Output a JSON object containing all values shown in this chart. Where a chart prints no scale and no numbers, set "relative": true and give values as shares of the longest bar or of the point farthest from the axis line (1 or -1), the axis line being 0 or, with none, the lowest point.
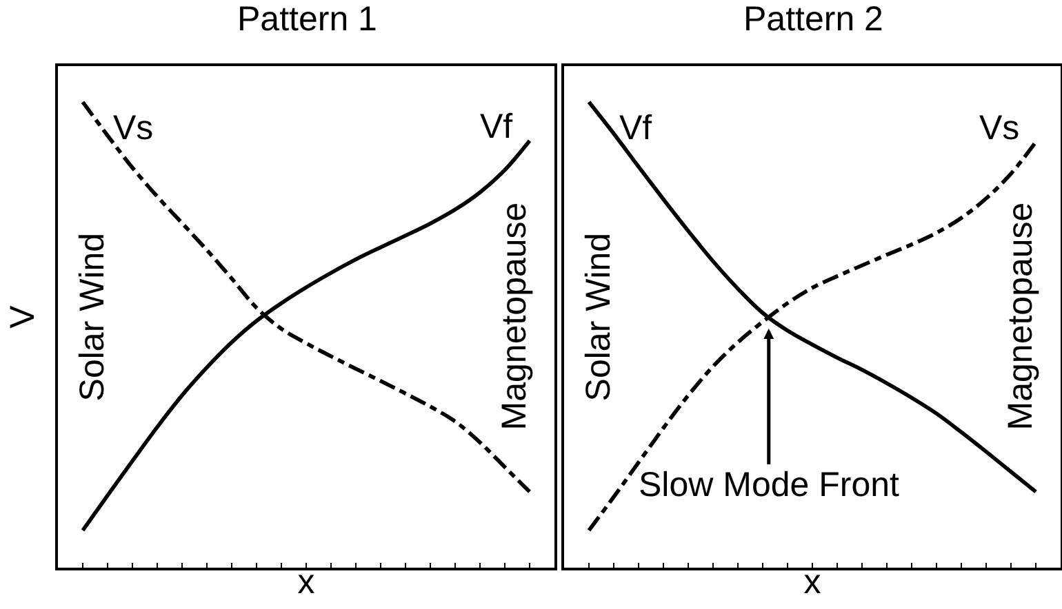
{
  "chart_data": [
    {
      "type": "line",
      "title": "Pattern 1",
      "xlabel": "x",
      "ylabel": "V",
      "relative": true,
      "categories": [
        null,
        null,
        null,
        null,
        null,
        null,
        null,
        null,
        null,
        null,
        null,
        null,
        null,
        null,
        null,
        null,
        null,
        null,
        null
      ],
      "series": [
        {
          "name": "Vf",
          "color": "#000000",
          "line_style": "solid",
          "values": [
            0.08,
            0.155,
            0.229,
            0.302,
            0.37,
            0.43,
            0.484,
            0.53,
            0.568,
            0.602,
            0.633,
            0.662,
            0.688,
            0.713,
            0.739,
            0.769,
            0.806,
            0.854,
            0.917
          ]
        },
        {
          "name": "Vs",
          "color": "#000000",
          "line_style": "dashed",
          "values": [
            1.0,
            0.928,
            0.859,
            0.797,
            0.74,
            0.682,
            0.621,
            0.558,
            0.513,
            0.482,
            0.454,
            0.427,
            0.401,
            0.374,
            0.346,
            0.314,
            0.269,
            0.216,
            0.163
          ]
        }
      ],
      "annotations": [
        "Solar Wind",
        "Magnetopause"
      ]
    },
    {
      "type": "line",
      "title": "Pattern 2",
      "xlabel": "x",
      "relative": true,
      "categories": [
        null,
        null,
        null,
        null,
        null,
        null,
        null,
        null,
        null,
        null,
        null,
        null,
        null,
        null,
        null,
        null,
        null,
        null,
        null
      ],
      "series": [
        {
          "name": "Vf",
          "color": "#000000",
          "line_style": "solid",
          "values": [
            1.0,
            0.932,
            0.861,
            0.791,
            0.723,
            0.658,
            0.599,
            0.547,
            0.509,
            0.479,
            0.451,
            0.425,
            0.396,
            0.365,
            0.331,
            0.291,
            0.249,
            0.206,
            0.163
          ]
        },
        {
          "name": "Vs",
          "color": "#000000",
          "line_style": "dashed",
          "values": [
            0.08,
            0.152,
            0.226,
            0.3,
            0.37,
            0.432,
            0.484,
            0.528,
            0.568,
            0.601,
            0.626,
            0.649,
            0.672,
            0.694,
            0.719,
            0.751,
            0.793,
            0.846,
            0.914
          ]
        }
      ],
      "annotations": [
        "Solar Wind",
        "Magnetopause",
        {
          "text": "Slow Mode Front",
          "y": 0.54
        }
      ]
    }
  ]
}
